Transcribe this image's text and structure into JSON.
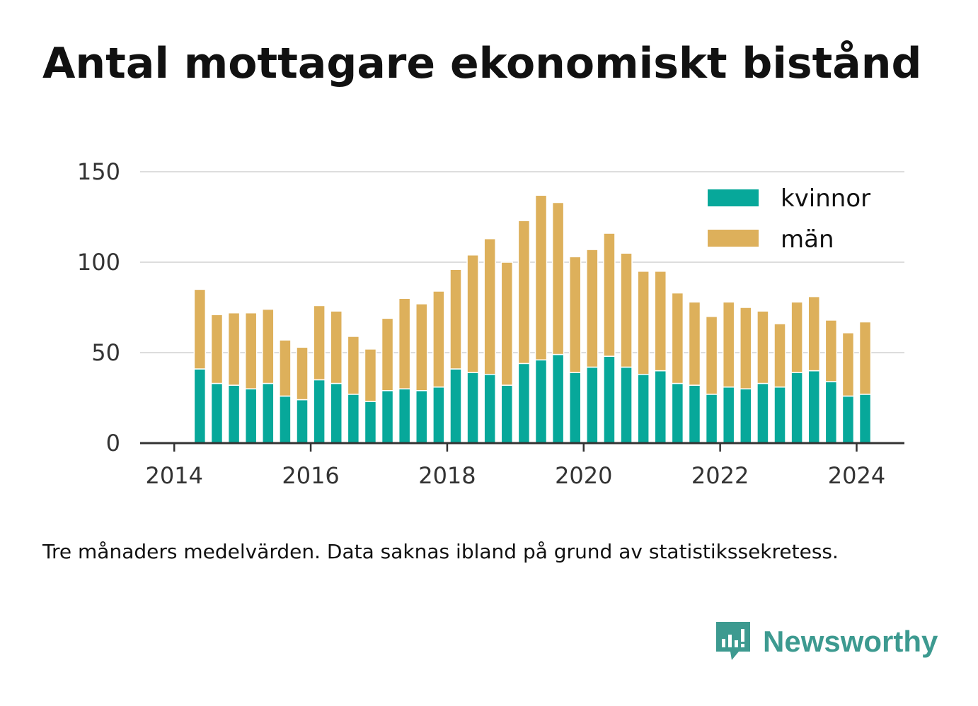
{
  "title": "Antal mottagare ekonomiskt bistånd",
  "note": "Tre månaders medelvärden. Data saknas ibland på grund av statistikssekretess.",
  "brand": {
    "name": "Newsworthy",
    "icon": "bar-chart-speech-bubble-icon"
  },
  "colors": {
    "kvinnor": "#07a89a",
    "man": "#ddb05b",
    "grid": "#dddddd",
    "axis": "#333333",
    "brand": "#3d9a90"
  },
  "chart_data": {
    "type": "bar",
    "stacked": true,
    "x_unit": "year",
    "x": [
      2014.375,
      2014.625,
      2014.875,
      2015.125,
      2015.375,
      2015.625,
      2015.875,
      2016.125,
      2016.375,
      2016.625,
      2016.875,
      2017.125,
      2017.375,
      2017.625,
      2017.875,
      2018.125,
      2018.375,
      2018.625,
      2018.875,
      2019.125,
      2019.375,
      2019.625,
      2019.875,
      2020.125,
      2020.375,
      2020.625,
      2020.875,
      2021.125,
      2021.375,
      2021.625,
      2021.875,
      2022.125,
      2022.375,
      2022.625,
      2022.875,
      2023.125,
      2023.375,
      2023.625,
      2023.875,
      2024.125
    ],
    "series": [
      {
        "name": "kvinnor",
        "values": [
          41,
          33,
          32,
          30,
          33,
          26,
          24,
          35,
          33,
          27,
          23,
          29,
          30,
          29,
          31,
          41,
          39,
          38,
          32,
          44,
          46,
          49,
          39,
          42,
          48,
          42,
          38,
          40,
          33,
          32,
          27,
          31,
          30,
          33,
          31,
          39,
          40,
          34,
          26,
          27
        ]
      },
      {
        "name": "män",
        "values": [
          44,
          38,
          40,
          42,
          41,
          31,
          29,
          41,
          40,
          32,
          29,
          40,
          50,
          48,
          53,
          55,
          65,
          75,
          68,
          79,
          91,
          84,
          64,
          65,
          68,
          63,
          57,
          55,
          50,
          46,
          43,
          47,
          45,
          40,
          35,
          39,
          41,
          34,
          35,
          40
        ]
      }
    ],
    "ylim": [
      0,
      150
    ],
    "yticks": [
      0,
      50,
      100,
      150
    ],
    "xlim": [
      2013.5,
      2024.7
    ],
    "xticks": [
      2014,
      2016,
      2018,
      2020,
      2022,
      2024
    ],
    "grid": true,
    "legend": "top-right"
  }
}
